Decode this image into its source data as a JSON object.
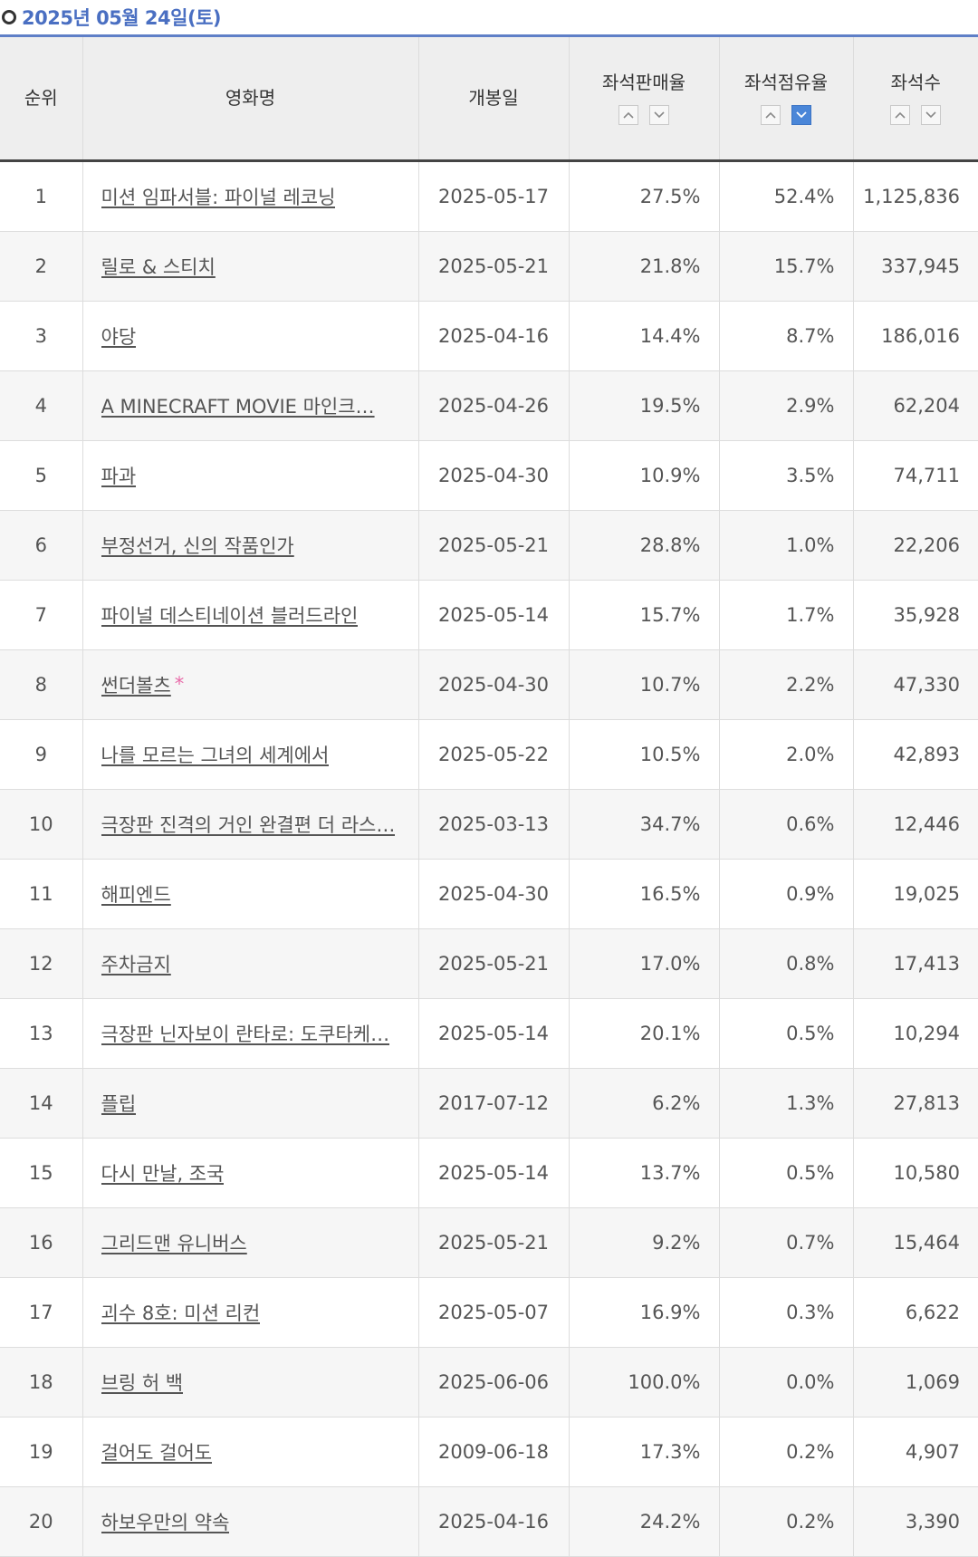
{
  "header": {
    "date": "2025년 05월 24일(토)"
  },
  "columns": {
    "rank": "순위",
    "title": "영화명",
    "release": "개봉일",
    "sales_rate": "좌석판매율",
    "share": "좌석점유율",
    "seats": "좌석수"
  },
  "sort": {
    "active": "share-desc"
  },
  "rows": [
    {
      "rank": "1",
      "title": "미션 임파서블: 파이널 레코닝",
      "release": "2025-05-17",
      "sales_rate": "27.5%",
      "share": "52.4%",
      "seats": "1,125,836"
    },
    {
      "rank": "2",
      "title": "릴로 & 스티치",
      "release": "2025-05-21",
      "sales_rate": "21.8%",
      "share": "15.7%",
      "seats": "337,945"
    },
    {
      "rank": "3",
      "title": "야당",
      "release": "2025-04-16",
      "sales_rate": "14.4%",
      "share": "8.7%",
      "seats": "186,016"
    },
    {
      "rank": "4",
      "title": "A MINECRAFT MOVIE 마인크…",
      "release": "2025-04-26",
      "sales_rate": "19.5%",
      "share": "2.9%",
      "seats": "62,204"
    },
    {
      "rank": "5",
      "title": "파과",
      "release": "2025-04-30",
      "sales_rate": "10.9%",
      "share": "3.5%",
      "seats": "74,711"
    },
    {
      "rank": "6",
      "title": "부정선거, 신의 작품인가",
      "release": "2025-05-21",
      "sales_rate": "28.8%",
      "share": "1.0%",
      "seats": "22,206"
    },
    {
      "rank": "7",
      "title": "파이널 데스티네이션 블러드라인",
      "release": "2025-05-14",
      "sales_rate": "15.7%",
      "share": "1.7%",
      "seats": "35,928"
    },
    {
      "rank": "8",
      "title": "썬더볼츠",
      "release": "2025-04-30",
      "sales_rate": "10.7%",
      "share": "2.2%",
      "seats": "47,330",
      "star": "*"
    },
    {
      "rank": "9",
      "title": "나를 모르는 그녀의 세계에서",
      "release": "2025-05-22",
      "sales_rate": "10.5%",
      "share": "2.0%",
      "seats": "42,893"
    },
    {
      "rank": "10",
      "title": "극장판 진격의 거인 완결편 더 라스…",
      "release": "2025-03-13",
      "sales_rate": "34.7%",
      "share": "0.6%",
      "seats": "12,446"
    },
    {
      "rank": "11",
      "title": "해피엔드",
      "release": "2025-04-30",
      "sales_rate": "16.5%",
      "share": "0.9%",
      "seats": "19,025"
    },
    {
      "rank": "12",
      "title": "주차금지",
      "release": "2025-05-21",
      "sales_rate": "17.0%",
      "share": "0.8%",
      "seats": "17,413"
    },
    {
      "rank": "13",
      "title": "극장판 닌자보이 란타로: 도쿠타케…",
      "release": "2025-05-14",
      "sales_rate": "20.1%",
      "share": "0.5%",
      "seats": "10,294"
    },
    {
      "rank": "14",
      "title": "플립",
      "release": "2017-07-12",
      "sales_rate": "6.2%",
      "share": "1.3%",
      "seats": "27,813"
    },
    {
      "rank": "15",
      "title": "다시 만날, 조국",
      "release": "2025-05-14",
      "sales_rate": "13.7%",
      "share": "0.5%",
      "seats": "10,580"
    },
    {
      "rank": "16",
      "title": "그리드맨 유니버스",
      "release": "2025-05-21",
      "sales_rate": "9.2%",
      "share": "0.7%",
      "seats": "15,464"
    },
    {
      "rank": "17",
      "title": "괴수 8호: 미션 리컨",
      "release": "2025-05-07",
      "sales_rate": "16.9%",
      "share": "0.3%",
      "seats": "6,622"
    },
    {
      "rank": "18",
      "title": "브링 허 백",
      "release": "2025-06-06",
      "sales_rate": "100.0%",
      "share": "0.0%",
      "seats": "1,069"
    },
    {
      "rank": "19",
      "title": "걸어도 걸어도",
      "release": "2009-06-18",
      "sales_rate": "17.3%",
      "share": "0.2%",
      "seats": "4,907"
    },
    {
      "rank": "20",
      "title": "하보우만의 약속",
      "release": "2025-04-16",
      "sales_rate": "24.2%",
      "share": "0.2%",
      "seats": "3,390"
    }
  ]
}
